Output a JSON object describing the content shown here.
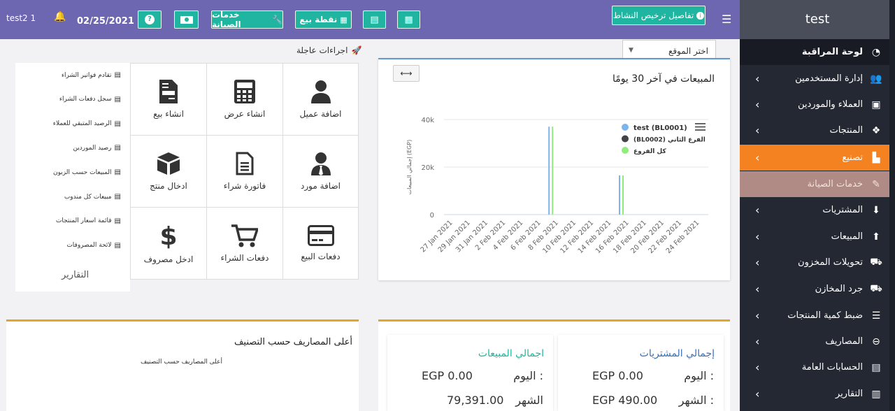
{
  "topbar": {
    "user": "test2 1",
    "date": "02/25/2021",
    "maintenance_label": "خدمات الصيانة",
    "pos_label": "نقطة بيع",
    "license_label": "تفاصيل ترخيص النشاط"
  },
  "sidebar": {
    "title": "test",
    "items": [
      {
        "label": "لوحة المراقبة",
        "icon": "dashboard-icon",
        "glyph": "◔"
      },
      {
        "label": "إدارة المستخدمين",
        "icon": "users-icon",
        "glyph": "👥"
      },
      {
        "label": "العملاء والموردين",
        "icon": "contacts-icon",
        "glyph": "▣"
      },
      {
        "label": "المنتجات",
        "icon": "cubes-icon",
        "glyph": "❖"
      },
      {
        "label": "تصنيع",
        "icon": "industry-icon",
        "glyph": "▙"
      },
      {
        "label": "خدمات الصيانة",
        "icon": "wrench-icon",
        "glyph": "✎"
      },
      {
        "label": "المشتريات",
        "icon": "arrow-circle-down-icon",
        "glyph": "⬇"
      },
      {
        "label": "المبيعات",
        "icon": "arrow-circle-up-icon",
        "glyph": "⬆"
      },
      {
        "label": "تحويلات المخزون",
        "icon": "truck-icon",
        "glyph": "⛟"
      },
      {
        "label": "جرد المخازن",
        "icon": "truck-loading-icon",
        "glyph": "⛟"
      },
      {
        "label": "ضبط كمية المنتجات",
        "icon": "database-icon",
        "glyph": "☰"
      },
      {
        "label": "المصاريف",
        "icon": "minus-circle-icon",
        "glyph": "⊖"
      },
      {
        "label": "الحسابات العامة",
        "icon": "money-check-icon",
        "glyph": "▤"
      },
      {
        "label": "التقارير",
        "icon": "chart-icon",
        "glyph": "▥"
      }
    ]
  },
  "quick_actions": {
    "title": "اجراءات عاجلة",
    "tiles": [
      {
        "label": "اضافة عميل",
        "icon": "user-icon"
      },
      {
        "label": "انشاء عرض",
        "icon": "calculator-icon"
      },
      {
        "label": "انشاء بيع",
        "icon": "invoice-icon"
      },
      {
        "label": "اضافة مورد",
        "icon": "user-tie-icon"
      },
      {
        "label": "فاتورة شراء",
        "icon": "file-icon"
      },
      {
        "label": "ادخال منتج",
        "icon": "box-icon"
      },
      {
        "label": "دفعات البيع",
        "icon": "credit-card-icon"
      },
      {
        "label": "دفعات الشراء",
        "icon": "cart-icon"
      },
      {
        "label": "ادخل مصروف",
        "icon": "dollar-icon"
      }
    ]
  },
  "reports": {
    "title": "التقارير",
    "links": [
      "تقادم فواتير الشراء",
      "سجل دفعات الشراء",
      "الرصيد المتبقي للعملاء",
      "رصيد الموردين",
      "المبيعات حسب الزبون",
      "مبيعات كل مندوب",
      "قائمة اسعار المنتجات",
      "لائحة المصروفات"
    ]
  },
  "site_select": {
    "value": "اختر الموقع"
  },
  "chart_data": {
    "type": "bar",
    "title": "المبيعات في آخر 30 يومًا",
    "ylabel": "إجمالي المبيعات (EGP)",
    "ylim": [
      0,
      40000
    ],
    "yticks": [
      "0",
      "20k",
      "40k"
    ],
    "xticklabels": [
      "27 Jan 2021",
      "29 Jan 2021",
      "31 Jan 2021",
      "2 Feb 2021",
      "4 Feb 2021",
      "6 Feb 2021",
      "8 Feb 2021",
      "10 Feb 2021",
      "12 Feb 2021",
      "14 Feb 2021",
      "16 Feb 2021",
      "18 Feb 2021",
      "20 Feb 2021",
      "22 Feb 2021",
      "24 Feb 2021"
    ],
    "series": [
      {
        "name": "test (BL0001)",
        "color": "#7cb5ec",
        "points": [
          {
            "date": "7 Feb 2021",
            "value": 37000
          },
          {
            "date": "15 Feb 2021",
            "value": 16500
          }
        ]
      },
      {
        "name": "(BL0002) الفرع الثاني",
        "color": "#434348",
        "points": []
      },
      {
        "name": "كل الفروع",
        "color": "#90ed7d",
        "points": [
          {
            "date": "7 Feb 2021",
            "value": 37000
          },
          {
            "date": "15 Feb 2021",
            "value": 16500
          }
        ]
      }
    ],
    "legend_position": "top-right"
  },
  "expenses": {
    "title": "أعلى المصاريف حسب التصنيف",
    "subtitle": "أعلى المصاريف حسب التصنيف"
  },
  "purchases_card": {
    "title": "إجمالي المشتريات",
    "today_label": "اليوم :",
    "today_value": "EGP 0.00",
    "month_label": "الشهر :",
    "month_value": "EGP 490.00"
  },
  "sales_card": {
    "title": "اجمالي المبيعات",
    "today_label": "اليوم :",
    "today_value": "EGP 0.00",
    "month_label": "الشهر",
    "month_value": "79,391.00"
  },
  "colors": {
    "topbar": "#6d66b0",
    "sidebar": "#232833",
    "active": "#f58220",
    "teal": "#1fb5a0"
  }
}
